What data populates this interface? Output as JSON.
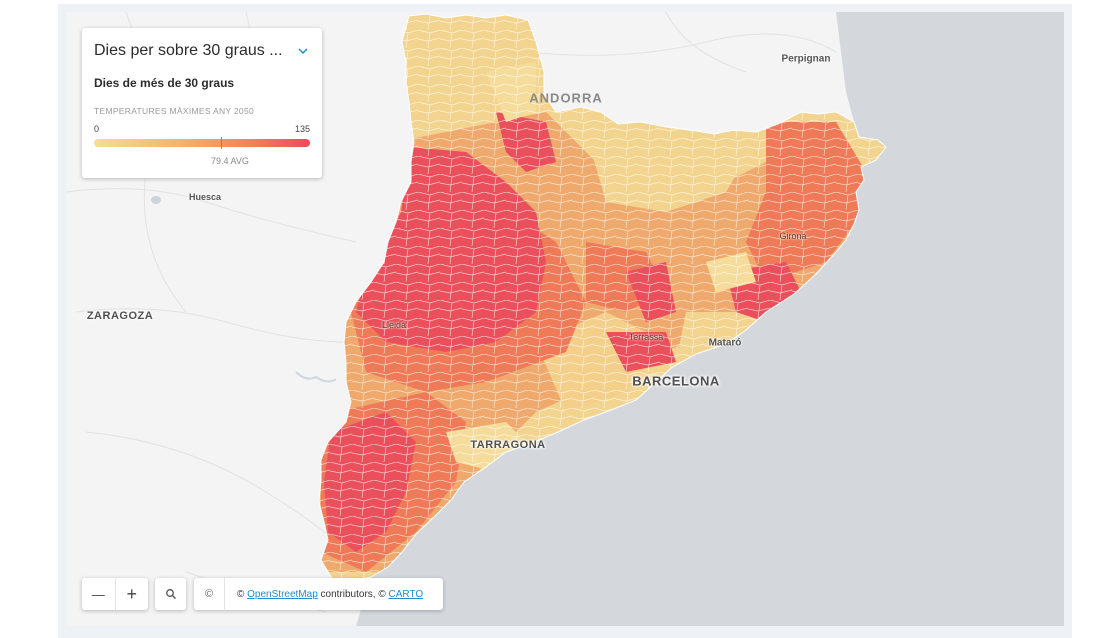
{
  "legend": {
    "selector_title": "Dies per sobre 30 graus ...",
    "subtitle": "Dies de més de 30 graus",
    "caption": "TEMPERATURES MÀXIMES ANY 2050",
    "min": "0",
    "max": "135",
    "avg_label": "79.4 AVG",
    "avg_value": 79.4,
    "ramp_colors": [
      "#f5dc9a",
      "#f3b36e",
      "#ef7f58",
      "#ea4b5a"
    ]
  },
  "places": {
    "andorra": "ANDORRA",
    "perpignan": "Perpignan",
    "huesca": "Huesca",
    "zaragoza": "ZARAGOZA",
    "lleida": "Lleida",
    "girona": "Girona",
    "terrassa": "Terrassa",
    "mataro": "Mataró",
    "barcelona": "BARCELONA",
    "tarragona": "TARRAGONA"
  },
  "controls": {
    "zoom_out": "—",
    "zoom_in": "+",
    "search_icon": "search-icon",
    "info_symbol": "©"
  },
  "attribution": {
    "prefix": "© ",
    "osm_link": "OpenStreetMap",
    "middle": " contributors, © ",
    "carto_link": "CARTO"
  },
  "colors": {
    "sea": "#d4d8dc",
    "land": "#f4f4f4",
    "low": "#f3d48f",
    "mid": "#f0a96c",
    "high": "#ea4b5a"
  }
}
